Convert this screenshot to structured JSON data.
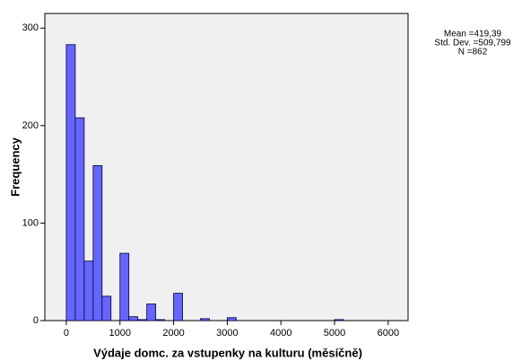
{
  "chart_data": {
    "type": "histogram",
    "xlabel": "Výdaje domc. za vstupenky na kulturu (měsíčně)",
    "ylabel": "Frequency",
    "stats": [
      "Mean =419,39",
      "Std. Dev. =509,799",
      "N =862"
    ],
    "bins": [
      0,
      166.67,
      333.33,
      500,
      666.67,
      833.33,
      1000,
      1166.67,
      1333.33,
      1500,
      1666.67,
      1833.33,
      2000,
      2166.67,
      2333.33,
      2500,
      2666.67,
      2833.33,
      3000,
      3166.67,
      3333.33,
      3500,
      3666.67,
      3833.33,
      4000,
      4166.67,
      4333.33,
      4500,
      4666.67,
      4833.33,
      5000,
      5166.67
    ],
    "counts": [
      283,
      208,
      61,
      159,
      25,
      0,
      69,
      4,
      1,
      17,
      1,
      0,
      28,
      0,
      0,
      2,
      0,
      0,
      3,
      0,
      0,
      0,
      0,
      0,
      0,
      0,
      0,
      0,
      0,
      0,
      1
    ],
    "color": "#6666ff",
    "xlim": [
      -400,
      6370
    ],
    "xticks": [
      0,
      1000,
      2000,
      3000,
      4000,
      5000,
      6000
    ],
    "ylim": [
      0,
      315
    ],
    "yticks": [
      0,
      100,
      200,
      300
    ]
  }
}
